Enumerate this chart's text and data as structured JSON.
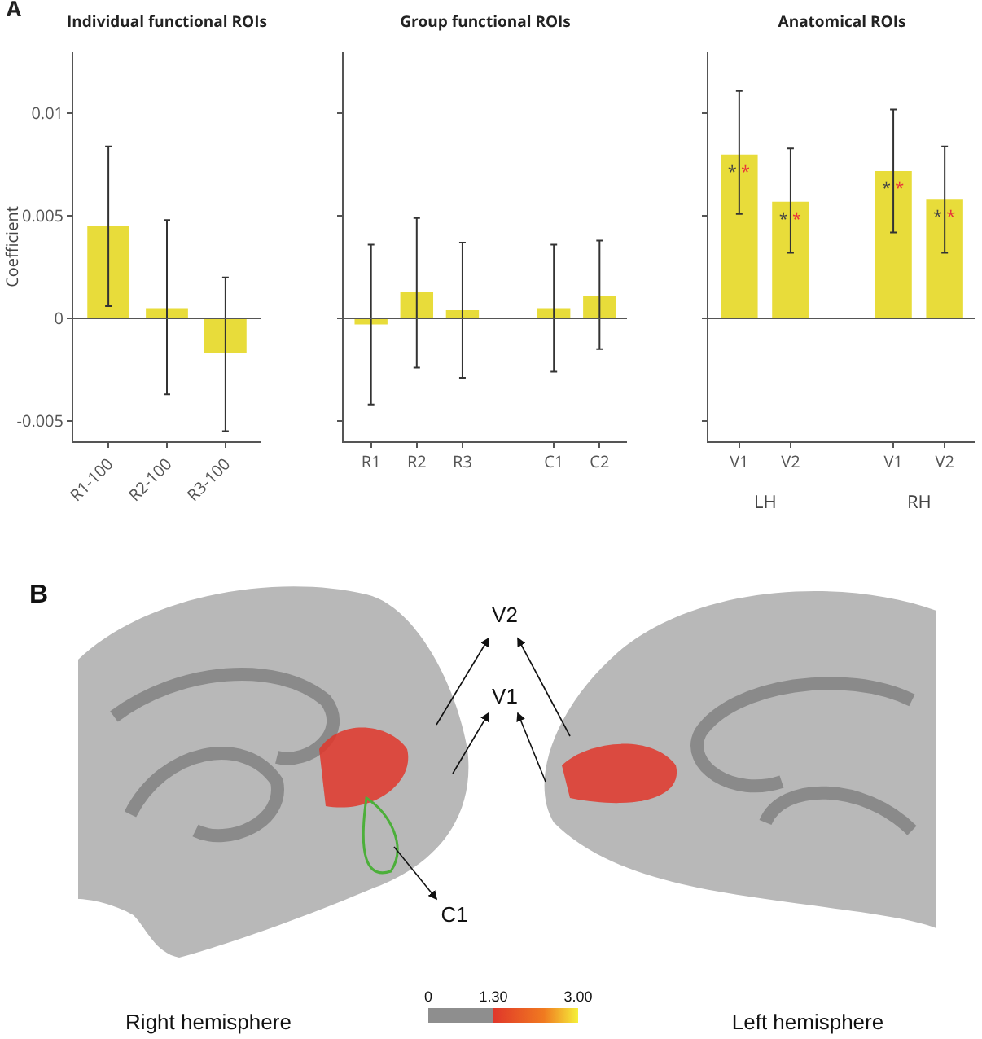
{
  "chart_data": [
    {
      "type": "bar",
      "title": "Individual functional ROIs",
      "ylabel": "Coefficient",
      "annotations": [
        "A"
      ],
      "categories": [
        "R1-100",
        "R2-100",
        "R3-100"
      ],
      "values": [
        0.0045,
        0.0005,
        -0.0017
      ],
      "errors": [
        [
          0.0006,
          0.0084
        ],
        [
          -0.0037,
          0.0048
        ],
        [
          -0.0055,
          0.002
        ]
      ],
      "color": "#e8dc3a",
      "ylim": [
        -0.006,
        0.013
      ],
      "yticks": [
        -0.005,
        0,
        0.005,
        0.01
      ],
      "ref_lines": [
        {
          "axis": "y",
          "value": 0
        }
      ],
      "grid": false
    },
    {
      "type": "bar",
      "title": "Group functional ROIs",
      "categories": [
        "R1",
        "R2",
        "R3",
        null,
        "C1",
        "C2"
      ],
      "values": [
        -0.0003,
        0.0013,
        0.0004,
        null,
        0.0005,
        0.0011
      ],
      "errors": [
        [
          -0.0042,
          0.0036
        ],
        [
          -0.0024,
          0.0049
        ],
        [
          -0.0029,
          0.0037
        ],
        null,
        [
          -0.0026,
          0.0036
        ],
        [
          -0.0015,
          0.0038
        ]
      ],
      "color": "#e8dc3a",
      "ylim": [
        -0.006,
        0.013
      ],
      "yticks": [
        {
          "value": -0.005,
          "label": null
        },
        {
          "value": 0,
          "label": null
        },
        {
          "value": 0.005,
          "label": null
        },
        {
          "value": 0.01,
          "label": null
        }
      ],
      "ref_lines": [
        {
          "axis": "y",
          "value": 0
        }
      ],
      "tick_labels": "x",
      "grid": false
    },
    {
      "type": "bar",
      "title": "Anatomical ROIs",
      "annotations": [
        "LH",
        "RH"
      ],
      "categories": [
        "V1",
        "V2",
        null,
        "V1",
        "V2"
      ],
      "values": [
        0.008,
        0.0057,
        null,
        0.0072,
        0.0058
      ],
      "errors": [
        [
          0.0051,
          0.0111
        ],
        [
          0.0032,
          0.0083
        ],
        null,
        [
          0.0042,
          0.0102
        ],
        [
          0.0032,
          0.0084
        ]
      ],
      "value_labels": [
        "**",
        "**",
        null,
        "**",
        "**"
      ],
      "color": "#e8dc3a",
      "ylim": [
        -0.006,
        0.013
      ],
      "yticks": [
        {
          "value": -0.005,
          "label": null
        },
        {
          "value": 0,
          "label": null
        },
        {
          "value": 0.005,
          "label": null
        },
        {
          "value": 0.01,
          "label": null
        }
      ],
      "ref_lines": [
        {
          "axis": "y",
          "value": 0
        }
      ],
      "tick_labels": "x",
      "grid": false
    },
    {
      "type": "other",
      "annotations": [
        "B",
        "V2",
        "V1",
        "C1",
        "Right hemisphere",
        "Left hemisphere",
        "0",
        "1.30",
        "3.00"
      ]
    }
  ]
}
